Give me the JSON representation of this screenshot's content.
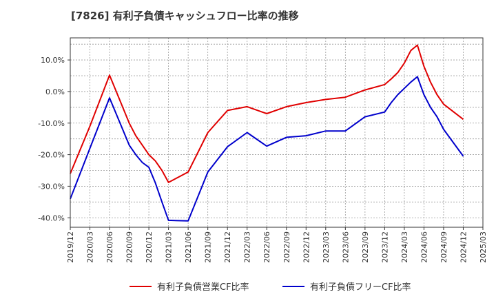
{
  "chart_data": {
    "type": "line",
    "title": "[7826]  有利子負債キャッシュフロー比率の推移",
    "xlabel": "",
    "ylabel": "",
    "x_ticks": [
      "2019/12",
      "2020/03",
      "2020/06",
      "2020/09",
      "2020/12",
      "2021/03",
      "2021/06",
      "2021/09",
      "2021/12",
      "2022/03",
      "2022/06",
      "2022/09",
      "2022/12",
      "2023/03",
      "2023/06",
      "2023/09",
      "2023/12",
      "2024/03",
      "2024/06",
      "2024/09",
      "2024/12",
      "2025/03"
    ],
    "y_ticks": [
      10.0,
      0.0,
      -10.0,
      -20.0,
      -30.0,
      -40.0
    ],
    "y_tick_labels": [
      "10.0%",
      "0.0%",
      "-10.0%",
      "-20.0%",
      "-30.0%",
      "-40.0%"
    ],
    "ylim": [
      -43.0,
      17.0
    ],
    "grid": true,
    "legend_position": "bottom",
    "series": [
      {
        "name": "有利子負債営業CF比率",
        "color": "#e00000",
        "x": [
          "2019/12",
          "2020/03",
          "2020/06",
          "2020/09",
          "2020/10",
          "2020/11",
          "2020/12",
          "2021/01",
          "2021/02",
          "2021/03",
          "2021/06",
          "2021/09",
          "2021/12",
          "2022/03",
          "2022/06",
          "2022/09",
          "2022/12",
          "2023/03",
          "2023/06",
          "2023/09",
          "2023/12",
          "2024/01",
          "2024/02",
          "2024/03",
          "2024/04",
          "2024/05",
          "2024/06",
          "2024/07",
          "2024/08",
          "2024/09",
          "2024/12"
        ],
        "values": [
          -26.0,
          -11.0,
          5.2,
          -10.0,
          -14.0,
          -17.0,
          -20.0,
          -22.0,
          -25.0,
          -28.8,
          -25.5,
          -13.0,
          -6.0,
          -4.8,
          -7.0,
          -4.8,
          -3.5,
          -2.5,
          -1.8,
          0.5,
          2.2,
          4.0,
          6.0,
          9.0,
          13.0,
          14.7,
          8.0,
          3.0,
          -1.0,
          -4.0,
          -8.8
        ]
      },
      {
        "name": "有利子負債フリーCF比率",
        "color": "#0000cc",
        "x": [
          "2019/12",
          "2020/03",
          "2020/06",
          "2020/09",
          "2020/10",
          "2020/11",
          "2020/12",
          "2021/01",
          "2021/02",
          "2021/03",
          "2021/06",
          "2021/09",
          "2021/12",
          "2022/03",
          "2022/06",
          "2022/09",
          "2022/12",
          "2023/03",
          "2023/06",
          "2023/09",
          "2023/12",
          "2024/01",
          "2024/02",
          "2024/03",
          "2024/04",
          "2024/05",
          "2024/06",
          "2024/07",
          "2024/08",
          "2024/09",
          "2024/12"
        ],
        "values": [
          -34.0,
          -18.0,
          -2.0,
          -17.0,
          -20.0,
          -22.5,
          -24.0,
          -29.0,
          -35.0,
          -40.8,
          -41.0,
          -25.5,
          -17.5,
          -13.0,
          -17.3,
          -14.5,
          -14.0,
          -12.5,
          -12.5,
          -8.0,
          -6.5,
          -3.5,
          -1.0,
          1.0,
          3.0,
          4.7,
          -1.0,
          -5.0,
          -8.0,
          -12.0,
          -20.5
        ]
      }
    ]
  }
}
